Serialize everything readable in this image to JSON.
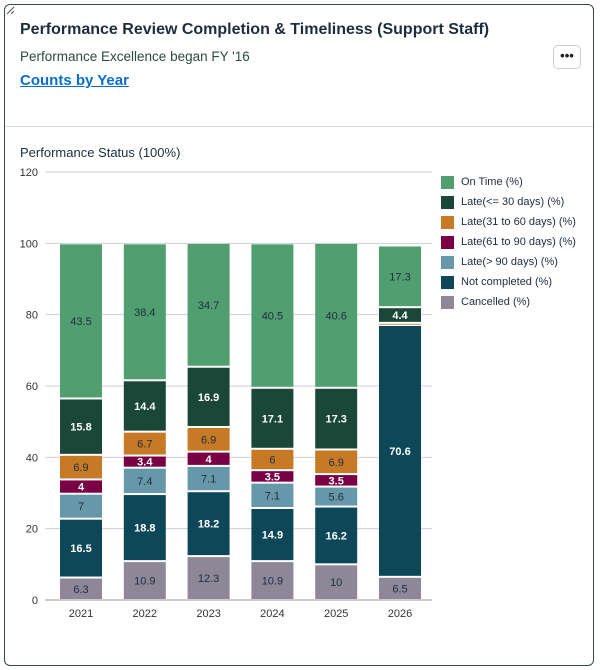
{
  "header": {
    "title": "Performance Review Completion & Timeliness (Support Staff)",
    "subtitle": "Performance Excellence began FY '16",
    "link": "Counts by Year",
    "more_label": "•••"
  },
  "chart_data": {
    "type": "bar",
    "stacked": true,
    "title": "Performance Status (100%)",
    "xlabel": "",
    "ylabel": "",
    "ylim": [
      0,
      120
    ],
    "yticks": [
      0,
      20,
      40,
      60,
      80,
      100,
      120
    ],
    "grid": true,
    "legend_position": "right",
    "categories": [
      "2021",
      "2022",
      "2023",
      "2024",
      "2025",
      "2026"
    ],
    "series": [
      {
        "name": "Cancelled (%)",
        "color": "#8e8797",
        "label_color": "#1d2d3e",
        "values": [
          6.3,
          10.9,
          12.3,
          10.9,
          10,
          6.5
        ]
      },
      {
        "name": "Not completed (%)",
        "color": "#0e4858",
        "label_color": "#ffffff",
        "values": [
          16.5,
          18.8,
          18.2,
          14.9,
          16.2,
          70.6
        ]
      },
      {
        "name": "Late(> 90 days) (%)",
        "color": "#6698aa",
        "label_color": "#1d2d3e",
        "values": [
          7,
          7.4,
          7.1,
          7.1,
          5.6,
          null
        ]
      },
      {
        "name": "Late(61 to 90 days) (%)",
        "color": "#7a0045",
        "label_color": "#ffffff",
        "values": [
          4,
          3.4,
          4,
          3.5,
          3.5,
          null
        ]
      },
      {
        "name": "Late(31 to 60 days) (%)",
        "color": "#c67a25",
        "label_color": "#1d2d3e",
        "values": [
          6.9,
          6.7,
          6.9,
          6,
          6.9,
          0.6
        ]
      },
      {
        "name": "Late(<= 30 days) (%)",
        "color": "#1b4739",
        "label_color": "#ffffff",
        "values": [
          15.8,
          14.4,
          16.9,
          17.1,
          17.3,
          4.4
        ]
      },
      {
        "name": "On Time (%)",
        "color": "#519f70",
        "label_color": "#1d2d3e",
        "values": [
          43.5,
          38.4,
          34.7,
          40.5,
          40.6,
          17.3
        ]
      }
    ],
    "legend_order": [
      "On Time (%)",
      "Late(<= 30 days) (%)",
      "Late(31 to 60 days) (%)",
      "Late(61 to 90 days) (%)",
      "Late(> 90 days) (%)",
      "Not completed (%)",
      "Cancelled (%)"
    ]
  }
}
